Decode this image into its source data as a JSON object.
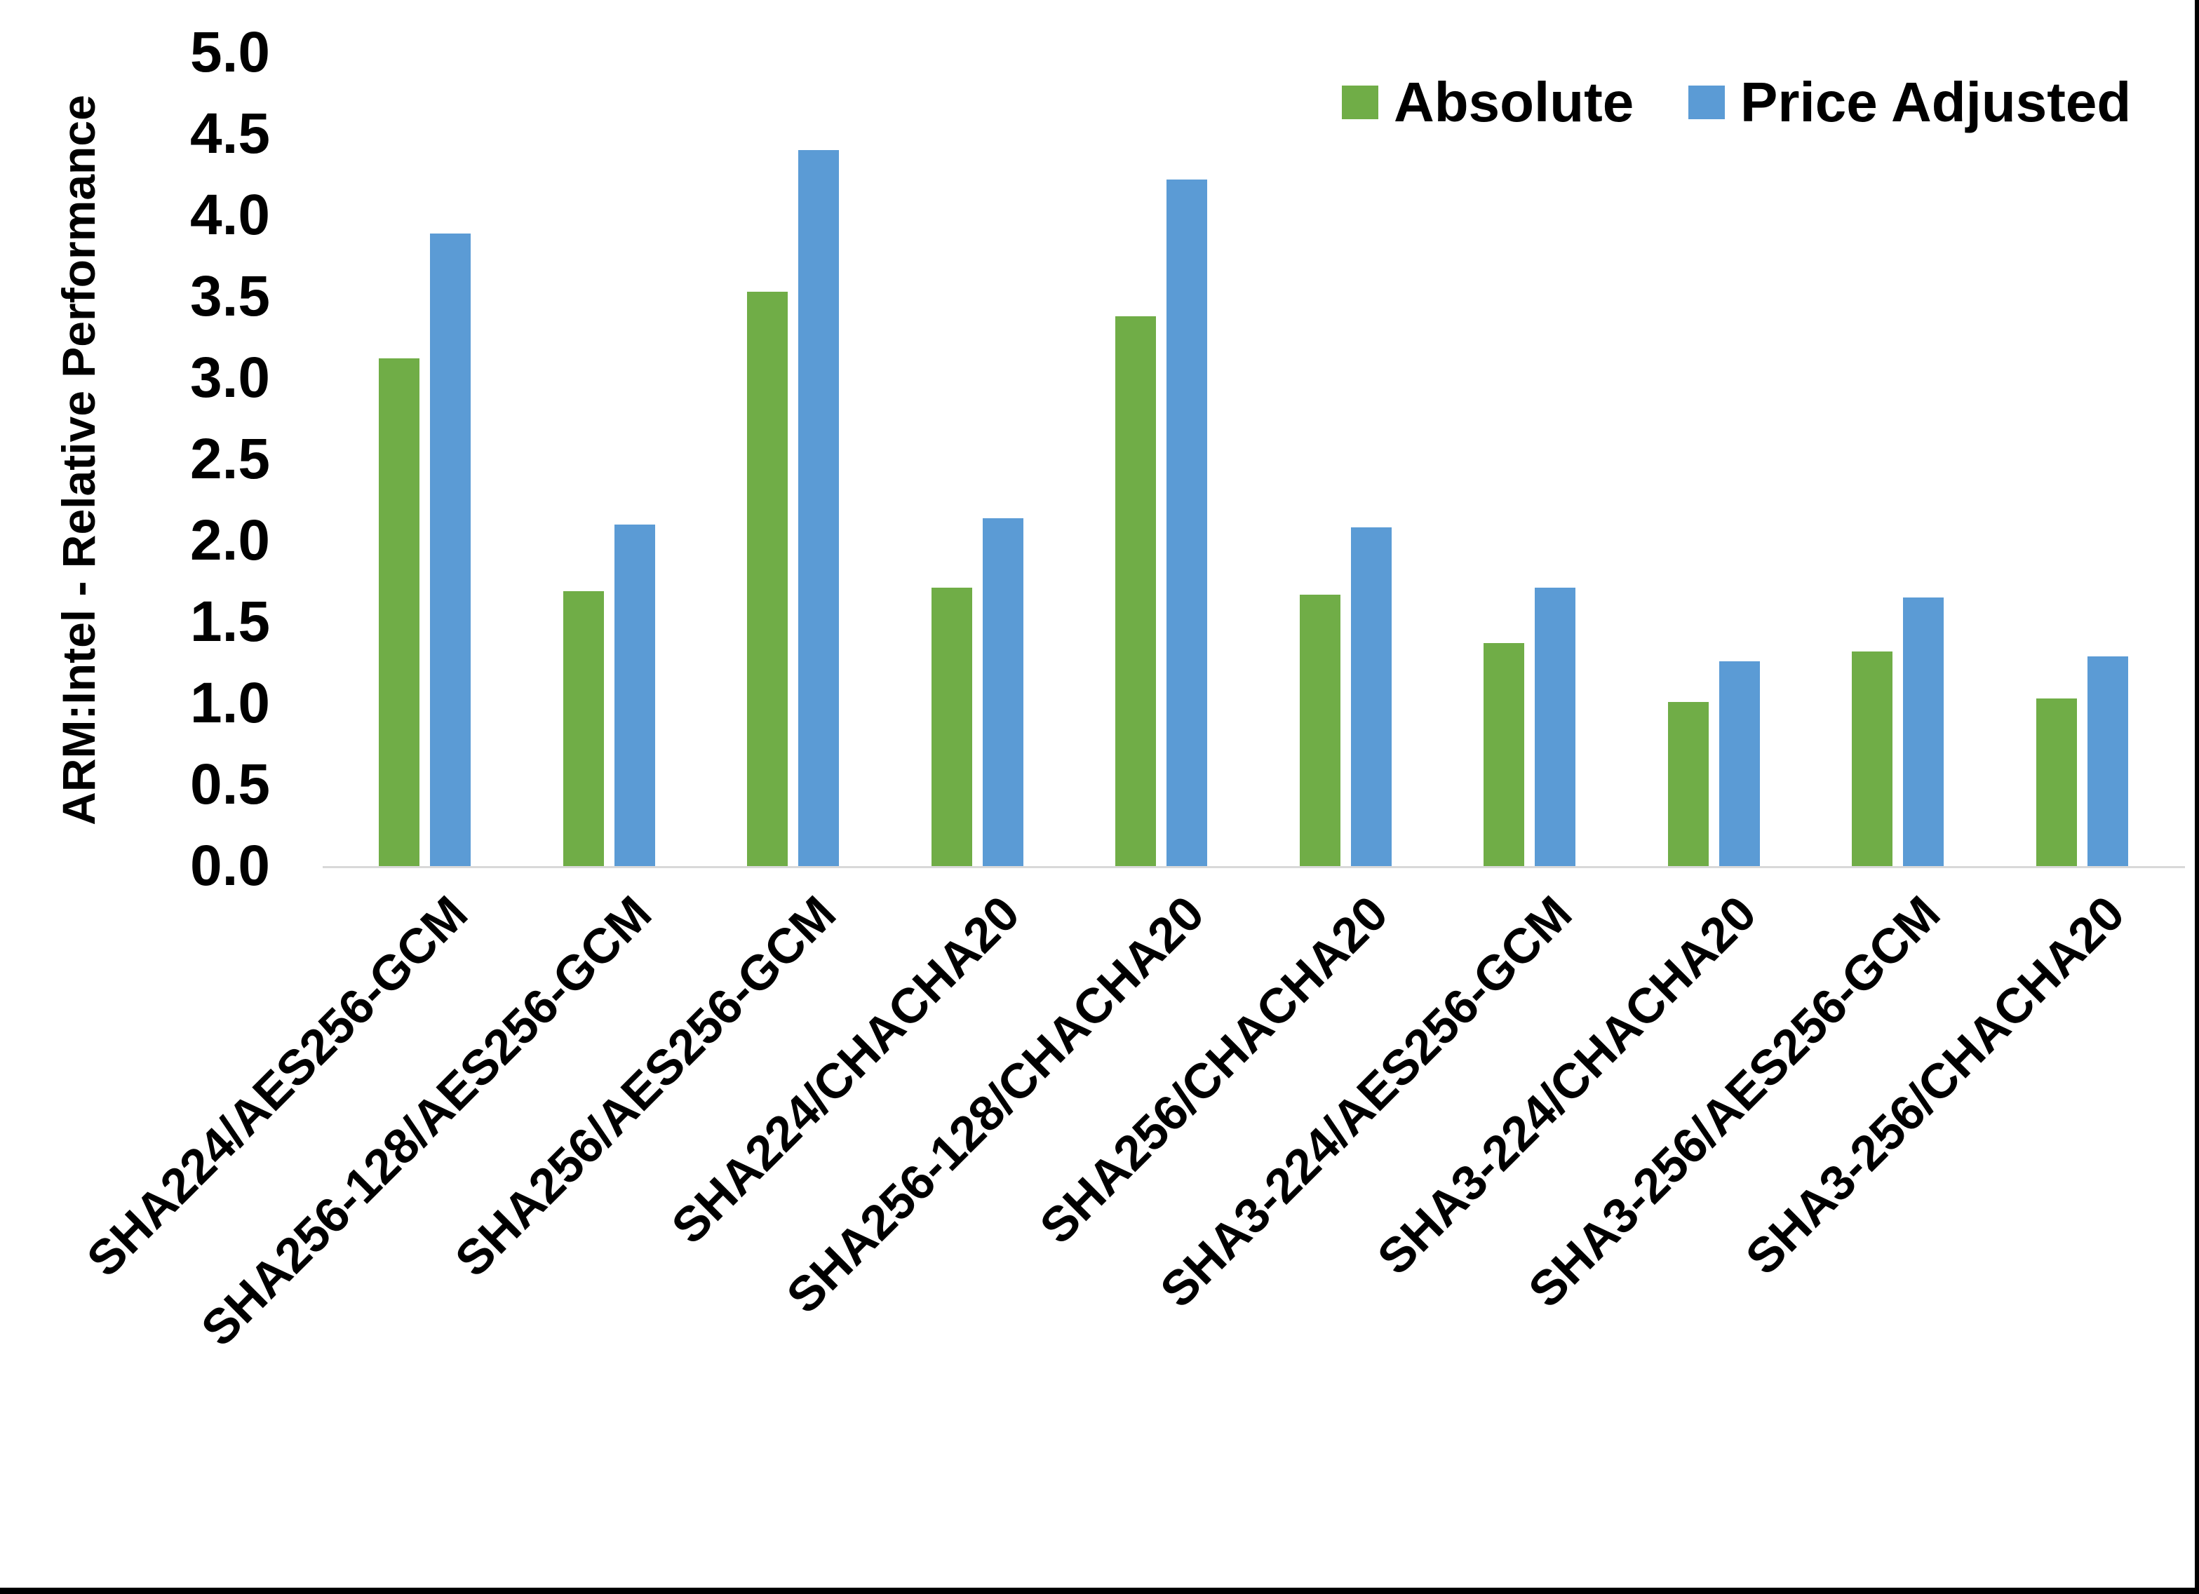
{
  "chart_data": {
    "type": "bar",
    "title": "",
    "ylabel": "ARM:Intel - Relative Performance",
    "ylim": [
      0,
      5
    ],
    "ytick_step": 0.5,
    "ytick_labels": [
      "5.0",
      "4.5",
      "4.0",
      "3.5",
      "3.0",
      "2.5",
      "2.0",
      "1.5",
      "1.0",
      "0.5",
      "0.0"
    ],
    "grid": false,
    "legend_position": "top-right",
    "categories": [
      "SHA224/AES256-GCM",
      "SHA256-128/AES256-GCM",
      "SHA256/AES256-GCM",
      "SHA224/CHACHA20",
      "SHA256-128/CHACHA20",
      "SHA256/CHACHA20",
      "SHA3-224/AES256-GCM",
      "SHA3-224/CHACHA20",
      "SHA3-256/AES256-GCM",
      "SHA3-256/CHACHA20"
    ],
    "series": [
      {
        "name": "Absolute",
        "color": "#70AD47",
        "values": [
          3.12,
          1.69,
          3.53,
          1.71,
          3.38,
          1.67,
          1.37,
          1.01,
          1.32,
          1.03
        ]
      },
      {
        "name": "Price Adjusted",
        "color": "#5B9BD5",
        "values": [
          3.89,
          2.1,
          4.4,
          2.14,
          4.22,
          2.08,
          1.71,
          1.26,
          1.65,
          1.29
        ]
      }
    ],
    "axis_line_color": "#D9D9D9",
    "text_color": "#000000",
    "frame_border_color": "#000000"
  }
}
